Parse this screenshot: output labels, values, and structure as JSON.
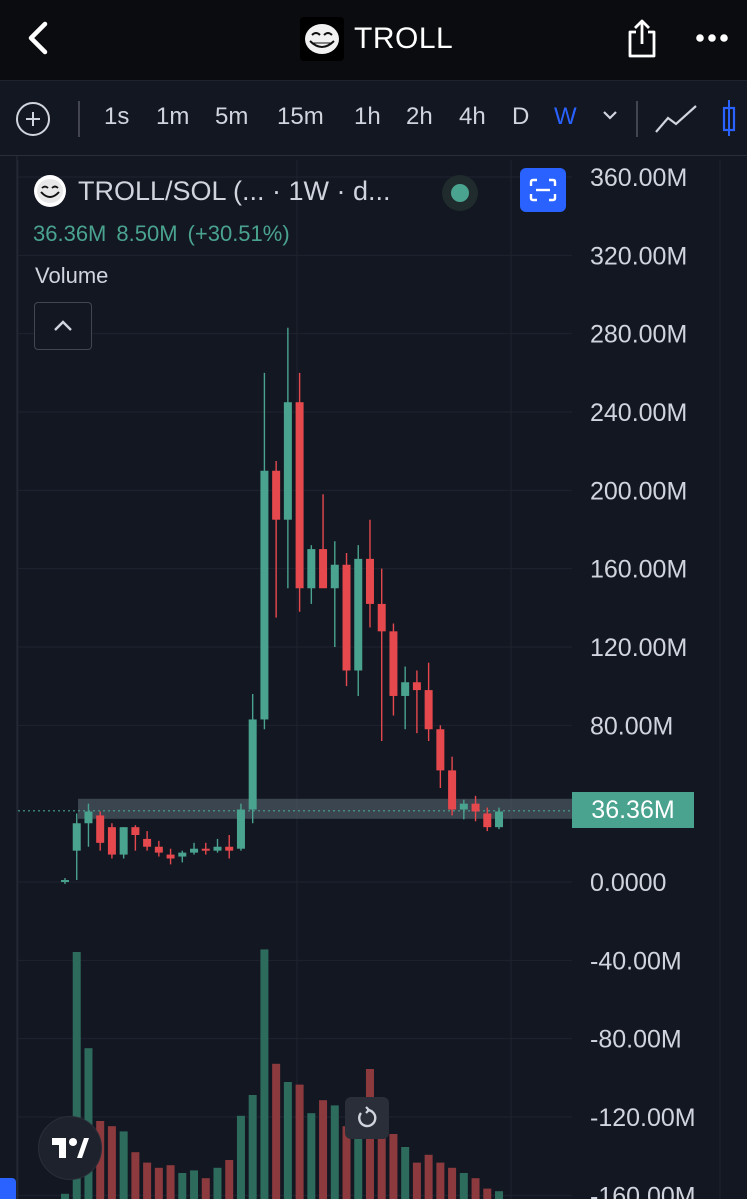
{
  "header": {
    "title": "TROLL",
    "back_icon": "chevron-left-icon",
    "share_icon": "share-icon",
    "more_icon": "more-dots-icon"
  },
  "toolbar": {
    "intervals": [
      "1s",
      "1m",
      "5m",
      "15m",
      "1h",
      "2h",
      "4h",
      "D",
      "W"
    ],
    "active_interval": "W"
  },
  "legend": {
    "symbol": "TROLL/SOL (... · 1W · d...",
    "last_value": "36.36M",
    "change": "8.50M",
    "change_pct": "(+30.51%)",
    "volume_label": "Volume"
  },
  "price_badge": "36.36M",
  "colors": {
    "up": "#4aa38e",
    "down": "#e5484d",
    "background": "#131722",
    "accent": "#2962ff"
  },
  "chart_data": {
    "type": "candlestick",
    "interval": "1W",
    "y_axis_labels": [
      "360.00M",
      "320.00M",
      "280.00M",
      "240.00M",
      "200.00M",
      "160.00M",
      "120.00M",
      "80.00M",
      "36.36M",
      "0.0000",
      "-40.00M",
      "-80.00M",
      "-120.00M",
      "-160.00M"
    ],
    "ylim_millions": [
      -160,
      360
    ],
    "unit": "M",
    "candles": [
      {
        "o": 0,
        "h": 2,
        "l": -1,
        "c": 1
      },
      {
        "o": 16,
        "h": 35,
        "l": 1,
        "c": 30
      },
      {
        "o": 30,
        "h": 40,
        "l": 18,
        "c": 36
      },
      {
        "o": 34,
        "h": 36,
        "l": 16,
        "c": 20
      },
      {
        "o": 28,
        "h": 30,
        "l": 12,
        "c": 14
      },
      {
        "o": 14,
        "h": 28,
        "l": 12,
        "c": 28
      },
      {
        "o": 28,
        "h": 29,
        "l": 16,
        "c": 24
      },
      {
        "o": 22,
        "h": 26,
        "l": 16,
        "c": 18
      },
      {
        "o": 18,
        "h": 21,
        "l": 13,
        "c": 15
      },
      {
        "o": 14,
        "h": 17,
        "l": 9,
        "c": 12
      },
      {
        "o": 13,
        "h": 16,
        "l": 10,
        "c": 15
      },
      {
        "o": 15,
        "h": 20,
        "l": 14,
        "c": 17
      },
      {
        "o": 17,
        "h": 20,
        "l": 14,
        "c": 16
      },
      {
        "o": 16,
        "h": 22,
        "l": 15,
        "c": 18
      },
      {
        "o": 18,
        "h": 24,
        "l": 12,
        "c": 16
      },
      {
        "o": 17,
        "h": 40,
        "l": 16,
        "c": 37
      },
      {
        "o": 37,
        "h": 96,
        "l": 30,
        "c": 83
      },
      {
        "o": 83,
        "h": 260,
        "l": 78,
        "c": 210
      },
      {
        "o": 210,
        "h": 215,
        "l": 135,
        "c": 185
      },
      {
        "o": 185,
        "h": 283,
        "l": 150,
        "c": 245
      },
      {
        "o": 245,
        "h": 260,
        "l": 138,
        "c": 150
      },
      {
        "o": 150,
        "h": 172,
        "l": 142,
        "c": 170
      },
      {
        "o": 170,
        "h": 198,
        "l": 152,
        "c": 150
      },
      {
        "o": 150,
        "h": 174,
        "l": 120,
        "c": 162
      },
      {
        "o": 162,
        "h": 168,
        "l": 100,
        "c": 108
      },
      {
        "o": 108,
        "h": 172,
        "l": 95,
        "c": 165
      },
      {
        "o": 165,
        "h": 185,
        "l": 130,
        "c": 142
      },
      {
        "o": 142,
        "h": 160,
        "l": 72,
        "c": 128
      },
      {
        "o": 128,
        "h": 132,
        "l": 85,
        "c": 95
      },
      {
        "o": 95,
        "h": 110,
        "l": 78,
        "c": 102
      },
      {
        "o": 102,
        "h": 108,
        "l": 76,
        "c": 98
      },
      {
        "o": 98,
        "h": 112,
        "l": 72,
        "c": 78
      },
      {
        "o": 78,
        "h": 80,
        "l": 48,
        "c": 57
      },
      {
        "o": 57,
        "h": 64,
        "l": 34,
        "c": 37
      },
      {
        "o": 37,
        "h": 42,
        "l": 32,
        "c": 40
      },
      {
        "o": 40,
        "h": 44,
        "l": 31,
        "c": 36
      },
      {
        "o": 35,
        "h": 38,
        "l": 26,
        "c": 28
      },
      {
        "o": 28,
        "h": 38,
        "l": 27,
        "c": 36
      }
    ],
    "volume_relative": [
      0.02,
      0.95,
      0.58,
      0.3,
      0.28,
      0.26,
      0.18,
      0.14,
      0.12,
      0.13,
      0.1,
      0.11,
      0.08,
      0.12,
      0.15,
      0.32,
      0.4,
      0.96,
      0.52,
      0.45,
      0.44,
      0.33,
      0.38,
      0.36,
      0.28,
      0.36,
      0.5,
      0.3,
      0.25,
      0.2,
      0.14,
      0.17,
      0.14,
      0.12,
      0.1,
      0.08,
      0.04,
      0.03
    ]
  }
}
